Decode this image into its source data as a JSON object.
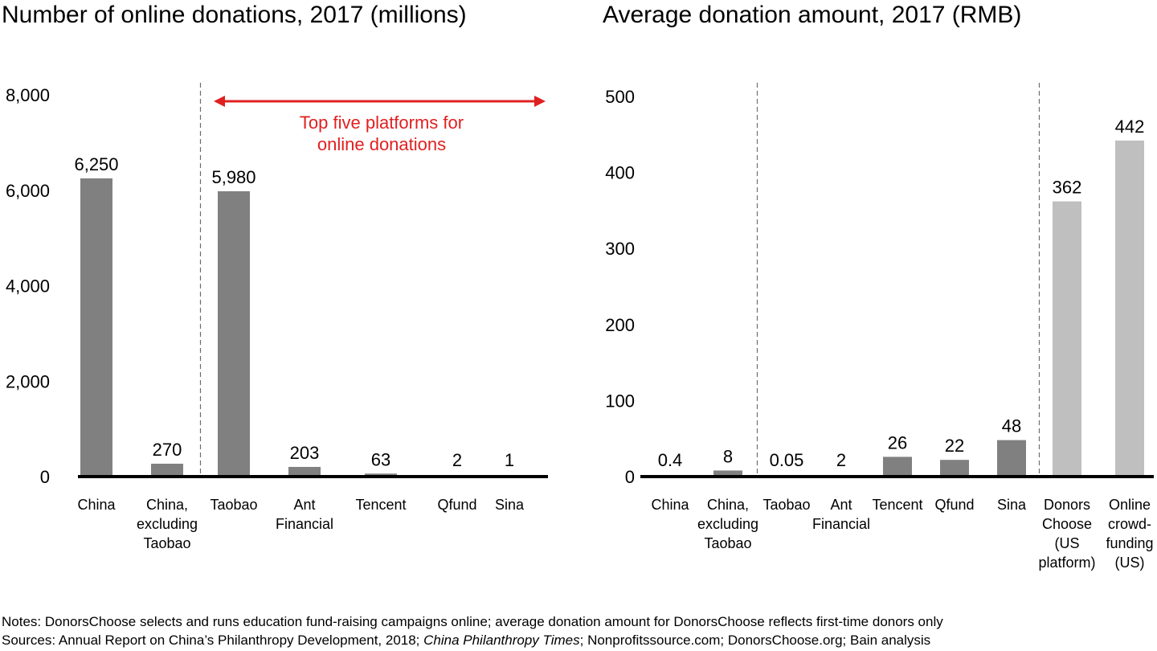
{
  "chart_data": [
    {
      "type": "bar",
      "title": "Number of online donations, 2017 (millions)",
      "categories": [
        [
          "China"
        ],
        [
          "China,",
          "excluding",
          "Taobao"
        ],
        [
          "Taobao"
        ],
        [
          "Ant",
          "Financial"
        ],
        [
          "Tencent"
        ],
        [
          "Qfund"
        ],
        [
          "Sina"
        ]
      ],
      "values": [
        6250,
        270,
        5980,
        203,
        63,
        2,
        1
      ],
      "value_labels": [
        "6,250",
        "270",
        "5,980",
        "203",
        "63",
        "2",
        "1"
      ],
      "bar_colors": [
        "#808080",
        "#808080",
        "#808080",
        "#808080",
        "#808080",
        "#808080",
        "#808080"
      ],
      "ylim": [
        0,
        8000
      ],
      "yticks": [
        0,
        2000,
        4000,
        6000,
        8000
      ],
      "ytick_labels": [
        "0",
        "2,000",
        "4,000",
        "6,000",
        "8,000"
      ],
      "separators_after": [
        1
      ],
      "annotation": {
        "text": [
          "Top five platforms for",
          "online donations"
        ],
        "color": "#e02020",
        "spans_categories": [
          2,
          6
        ]
      }
    },
    {
      "type": "bar",
      "title": "Average donation amount, 2017 (RMB)",
      "categories": [
        [
          "China"
        ],
        [
          "China,",
          "excluding",
          "Taobao"
        ],
        [
          "Taobao"
        ],
        [
          "Ant",
          "Financial"
        ],
        [
          "Tencent"
        ],
        [
          "Qfund"
        ],
        [
          "Sina"
        ],
        [
          "Donors",
          "Choose",
          "(US",
          "platform)"
        ],
        [
          "Online",
          "crowd-",
          "funding",
          "(US)"
        ]
      ],
      "values": [
        0.4,
        8,
        0.05,
        2,
        26,
        22,
        48,
        362,
        442
      ],
      "value_labels": [
        "0.4",
        "8",
        "0.05",
        "2",
        "26",
        "22",
        "48",
        "362",
        "442"
      ],
      "bar_colors": [
        "#808080",
        "#808080",
        "#808080",
        "#808080",
        "#808080",
        "#808080",
        "#808080",
        "#bfbfbf",
        "#bfbfbf"
      ],
      "ylim": [
        0,
        500
      ],
      "yticks": [
        0,
        100,
        200,
        300,
        400,
        500
      ],
      "ytick_labels": [
        "0",
        "100",
        "200",
        "300",
        "400",
        "500"
      ],
      "separators_after": [
        1,
        6
      ]
    }
  ],
  "notes": "Notes: DonorsChoose selects and runs education fund-raising campaigns online; average donation amount for DonorsChoose reflects first-time donors only",
  "sources": {
    "prefix": "Sources: Annual Report on China’s Philanthropy Development, 2018; ",
    "italic": "China Philanthropy Times",
    "suffix": "; Nonprofitssource.com; DonorsChoose.org; Bain analysis"
  }
}
